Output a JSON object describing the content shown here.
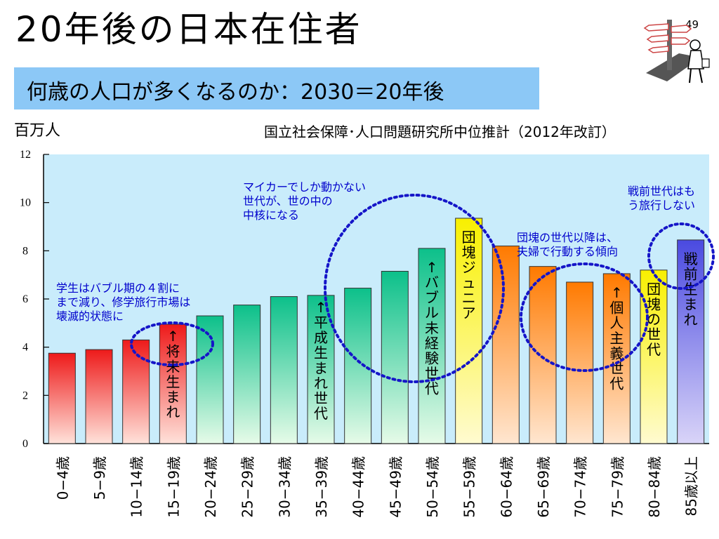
{
  "slide": {
    "title": "20年後の日本在住者",
    "page_number": "49",
    "subtitle": "何歳の人口が多くなるのか：2030＝20年後",
    "source_note": "国立社会保障･人口問題研究所中位推計（2012年改訂）"
  },
  "colors": {
    "plot_background": "#c9ecfb",
    "subtitle_box": "#8cc8f6",
    "annotation_text": "#0000cc",
    "ellipse": "#1515c8"
  },
  "chart_data": {
    "type": "bar",
    "ylabel": "百万人",
    "ylim": [
      0,
      12
    ],
    "yticks": [
      "0",
      "2",
      "4",
      "6",
      "8",
      "10",
      "12"
    ],
    "categories": [
      "0−4歳",
      "5−9歳",
      "10−14歳",
      "15−19歳",
      "20−24歳",
      "25−29歳",
      "30−34歳",
      "35−39歳",
      "40−44歳",
      "45−49歳",
      "50−54歳",
      "55−59歳",
      "60−64歳",
      "65−69歳",
      "70−74歳",
      "75−79歳",
      "80−84歳",
      "85歳以上"
    ],
    "values": [
      3.75,
      3.9,
      4.3,
      4.95,
      5.3,
      5.75,
      6.1,
      6.15,
      6.45,
      7.15,
      8.1,
      9.35,
      8.2,
      7.35,
      6.7,
      7.05,
      7.2,
      8.45
    ],
    "bar_colors": [
      [
        "#ee1a1a",
        "#ffe2da"
      ],
      [
        "#ee1a1a",
        "#ffe2da"
      ],
      [
        "#ee1a1a",
        "#ffe2da"
      ],
      [
        "#ee1a1a",
        "#ffe2da"
      ],
      [
        "#0cc08a",
        "#e6fbe8"
      ],
      [
        "#0cc08a",
        "#e6fbe8"
      ],
      [
        "#0cc08a",
        "#e6fbe8"
      ],
      [
        "#0cc08a",
        "#e6fbe8"
      ],
      [
        "#0cc08a",
        "#e6fbe8"
      ],
      [
        "#0cc08a",
        "#e6fbe8"
      ],
      [
        "#0cc08a",
        "#e6fbe8"
      ],
      [
        "#f8f000",
        "#fffbd0"
      ],
      [
        "#ff7a00",
        "#ffe6d0"
      ],
      [
        "#ff7a00",
        "#ffe6d0"
      ],
      [
        "#ff7a00",
        "#ffe6d0"
      ],
      [
        "#ff7a00",
        "#ffe6d0"
      ],
      [
        "#f8f000",
        "#fffbd0"
      ],
      [
        "#4a4ae0",
        "#d9d4f8"
      ]
    ],
    "bar_labels": [
      {
        "bar": 3,
        "text": "↑将来生まれ",
        "anchor": "below"
      },
      {
        "bar": 7,
        "text": "↑平成生まれ世代",
        "anchor": "below"
      },
      {
        "bar": 10,
        "text": "↑バブル未経験世代",
        "anchor": "inside"
      },
      {
        "bar": 11,
        "text": "団塊ジュニア",
        "anchor": "inside"
      },
      {
        "bar": 15,
        "text": "↑個人主義世代",
        "anchor": "inside"
      },
      {
        "bar": 16,
        "text": "団塊の世代",
        "anchor": "inside"
      },
      {
        "bar": 17,
        "text": "戦前生まれ",
        "anchor": "inside"
      }
    ],
    "annotations": [
      {
        "lines": [
          "学生はバブル期の４割に",
          "まで減り、修学旅行市場は",
          "壊滅的状態に"
        ],
        "region": "left"
      },
      {
        "lines": [
          "マイカーでしか動かない",
          "世代が、世の中の",
          "中核になる"
        ],
        "region": "center"
      },
      {
        "lines": [
          "団塊の世代以降は、",
          "夫婦で行動する傾向"
        ],
        "region": "right"
      },
      {
        "lines": [
          "戦前世代はも",
          "う旅行しない"
        ],
        "region": "far-right"
      }
    ],
    "grid": false
  }
}
